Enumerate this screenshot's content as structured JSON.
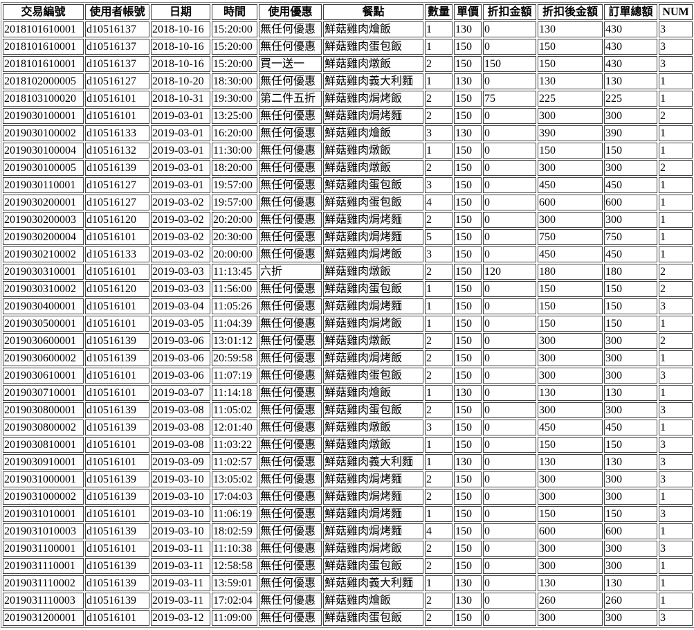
{
  "table": {
    "headers": [
      "交易編號",
      "使用者帳號",
      "日期",
      "時間",
      "使用優惠",
      "餐點",
      "數量",
      "單價",
      "折扣金額",
      "折扣後金額",
      "訂單總額",
      "NUM"
    ],
    "rows": [
      [
        "2018101610001",
        "d10516137",
        "2018-10-16",
        "15:20:00",
        "無任何優惠",
        "鮮菇雞肉燴飯",
        "1",
        "130",
        "0",
        "130",
        "430",
        "3"
      ],
      [
        "2018101610001",
        "d10516137",
        "2018-10-16",
        "15:20:00",
        "無任何優惠",
        "鮮菇雞肉蛋包飯",
        "1",
        "150",
        "0",
        "150",
        "430",
        "3"
      ],
      [
        "2018101610001",
        "d10516137",
        "2018-10-16",
        "15:20:00",
        "買一送一",
        "鮮菇雞肉燉飯",
        "2",
        "150",
        "150",
        "150",
        "430",
        "3"
      ],
      [
        "2018102000005",
        "d10516127",
        "2018-10-20",
        "18:30:00",
        "無任何優惠",
        "鮮菇雞肉義大利麵",
        "1",
        "130",
        "0",
        "130",
        "130",
        "1"
      ],
      [
        "2018103100020",
        "d10516101",
        "2018-10-31",
        "19:30:00",
        "第二件五折",
        "鮮菇雞肉焗烤飯",
        "2",
        "150",
        "75",
        "225",
        "225",
        "1"
      ],
      [
        "2019030100001",
        "d10516101",
        "2019-03-01",
        "13:25:00",
        "無任何優惠",
        "鮮菇雞肉焗烤麵",
        "2",
        "150",
        "0",
        "300",
        "300",
        "2"
      ],
      [
        "2019030100002",
        "d10516133",
        "2019-03-01",
        "16:20:00",
        "無任何優惠",
        "鮮菇雞肉燴飯",
        "3",
        "130",
        "0",
        "390",
        "390",
        "1"
      ],
      [
        "2019030100004",
        "d10516132",
        "2019-03-01",
        "11:30:00",
        "無任何優惠",
        "鮮菇雞肉燉飯",
        "1",
        "150",
        "0",
        "150",
        "150",
        "1"
      ],
      [
        "2019030100005",
        "d10516139",
        "2019-03-01",
        "18:20:00",
        "無任何優惠",
        "鮮菇雞肉燉飯",
        "2",
        "150",
        "0",
        "300",
        "300",
        "2"
      ],
      [
        "2019030110001",
        "d10516127",
        "2019-03-01",
        "19:57:00",
        "無任何優惠",
        "鮮菇雞肉蛋包飯",
        "3",
        "150",
        "0",
        "450",
        "450",
        "1"
      ],
      [
        "2019030200001",
        "d10516127",
        "2019-03-02",
        "19:57:00",
        "無任何優惠",
        "鮮菇雞肉蛋包飯",
        "4",
        "150",
        "0",
        "600",
        "600",
        "1"
      ],
      [
        "2019030200003",
        "d10516120",
        "2019-03-02",
        "20:20:00",
        "無任何優惠",
        "鮮菇雞肉焗烤麵",
        "2",
        "150",
        "0",
        "300",
        "300",
        "1"
      ],
      [
        "2019030200004",
        "d10516101",
        "2019-03-02",
        "20:30:00",
        "無任何優惠",
        "鮮菇雞肉焗烤麵",
        "5",
        "150",
        "0",
        "750",
        "750",
        "1"
      ],
      [
        "2019030210002",
        "d10516133",
        "2019-03-02",
        "20:00:00",
        "無任何優惠",
        "鮮菇雞肉焗烤飯",
        "3",
        "150",
        "0",
        "450",
        "450",
        "1"
      ],
      [
        "2019030310001",
        "d10516101",
        "2019-03-03",
        "11:13:45",
        "六折",
        "鮮菇雞肉燉飯",
        "2",
        "150",
        "120",
        "180",
        "180",
        "2"
      ],
      [
        "2019030310002",
        "d10516120",
        "2019-03-03",
        "11:56:00",
        "無任何優惠",
        "鮮菇雞肉蛋包飯",
        "1",
        "150",
        "0",
        "150",
        "150",
        "2"
      ],
      [
        "2019030400001",
        "d10516101",
        "2019-03-04",
        "11:05:26",
        "無任何優惠",
        "鮮菇雞肉焗烤麵",
        "1",
        "150",
        "0",
        "150",
        "150",
        "3"
      ],
      [
        "2019030500001",
        "d10516101",
        "2019-03-05",
        "11:04:39",
        "無任何優惠",
        "鮮菇雞肉焗烤飯",
        "1",
        "150",
        "0",
        "150",
        "150",
        "1"
      ],
      [
        "2019030600001",
        "d10516139",
        "2019-03-06",
        "13:01:12",
        "無任何優惠",
        "鮮菇雞肉燉飯",
        "2",
        "150",
        "0",
        "300",
        "300",
        "2"
      ],
      [
        "2019030600002",
        "d10516139",
        "2019-03-06",
        "20:59:58",
        "無任何優惠",
        "鮮菇雞肉焗烤飯",
        "2",
        "150",
        "0",
        "300",
        "300",
        "1"
      ],
      [
        "2019030610001",
        "d10516101",
        "2019-03-06",
        "11:07:19",
        "無任何優惠",
        "鮮菇雞肉蛋包飯",
        "2",
        "150",
        "0",
        "300",
        "300",
        "3"
      ],
      [
        "2019030710001",
        "d10516101",
        "2019-03-07",
        "11:14:18",
        "無任何優惠",
        "鮮菇雞肉燴飯",
        "1",
        "130",
        "0",
        "130",
        "130",
        "1"
      ],
      [
        "2019030800001",
        "d10516139",
        "2019-03-08",
        "11:05:02",
        "無任何優惠",
        "鮮菇雞肉蛋包飯",
        "2",
        "150",
        "0",
        "300",
        "300",
        "3"
      ],
      [
        "2019030800002",
        "d10516139",
        "2019-03-08",
        "12:01:40",
        "無任何優惠",
        "鮮菇雞肉燉飯",
        "3",
        "150",
        "0",
        "450",
        "450",
        "1"
      ],
      [
        "2019030810001",
        "d10516101",
        "2019-03-08",
        "11:03:22",
        "無任何優惠",
        "鮮菇雞肉燉飯",
        "1",
        "150",
        "0",
        "150",
        "150",
        "3"
      ],
      [
        "2019030910001",
        "d10516101",
        "2019-03-09",
        "11:02:57",
        "無任何優惠",
        "鮮菇雞肉義大利麵",
        "1",
        "130",
        "0",
        "130",
        "130",
        "3"
      ],
      [
        "2019031000001",
        "d10516139",
        "2019-03-10",
        "13:05:02",
        "無任何優惠",
        "鮮菇雞肉焗烤麵",
        "2",
        "150",
        "0",
        "300",
        "300",
        "3"
      ],
      [
        "2019031000002",
        "d10516139",
        "2019-03-10",
        "17:04:03",
        "無任何優惠",
        "鮮菇雞肉焗烤麵",
        "2",
        "150",
        "0",
        "300",
        "300",
        "1"
      ],
      [
        "2019031010001",
        "d10516101",
        "2019-03-10",
        "11:06:19",
        "無任何優惠",
        "鮮菇雞肉焗烤麵",
        "1",
        "150",
        "0",
        "150",
        "150",
        "3"
      ],
      [
        "2019031010003",
        "d10516139",
        "2019-03-10",
        "18:02:59",
        "無任何優惠",
        "鮮菇雞肉焗烤麵",
        "4",
        "150",
        "0",
        "600",
        "600",
        "1"
      ],
      [
        "2019031100001",
        "d10516101",
        "2019-03-11",
        "11:10:38",
        "無任何優惠",
        "鮮菇雞肉焗烤飯",
        "2",
        "150",
        "0",
        "300",
        "300",
        "3"
      ],
      [
        "2019031110001",
        "d10516139",
        "2019-03-11",
        "12:58:58",
        "無任何優惠",
        "鮮菇雞肉蛋包飯",
        "2",
        "150",
        "0",
        "300",
        "300",
        "1"
      ],
      [
        "2019031110002",
        "d10516139",
        "2019-03-11",
        "13:59:01",
        "無任何優惠",
        "鮮菇雞肉義大利麵",
        "1",
        "130",
        "0",
        "130",
        "130",
        "1"
      ],
      [
        "2019031110003",
        "d10516139",
        "2019-03-11",
        "17:02:04",
        "無任何優惠",
        "鮮菇雞肉燴飯",
        "2",
        "130",
        "0",
        "260",
        "260",
        "1"
      ],
      [
        "2019031200001",
        "d10516101",
        "2019-03-12",
        "11:09:00",
        "無任何優惠",
        "鮮菇雞肉蛋包飯",
        "2",
        "150",
        "0",
        "300",
        "300",
        "3"
      ]
    ]
  }
}
